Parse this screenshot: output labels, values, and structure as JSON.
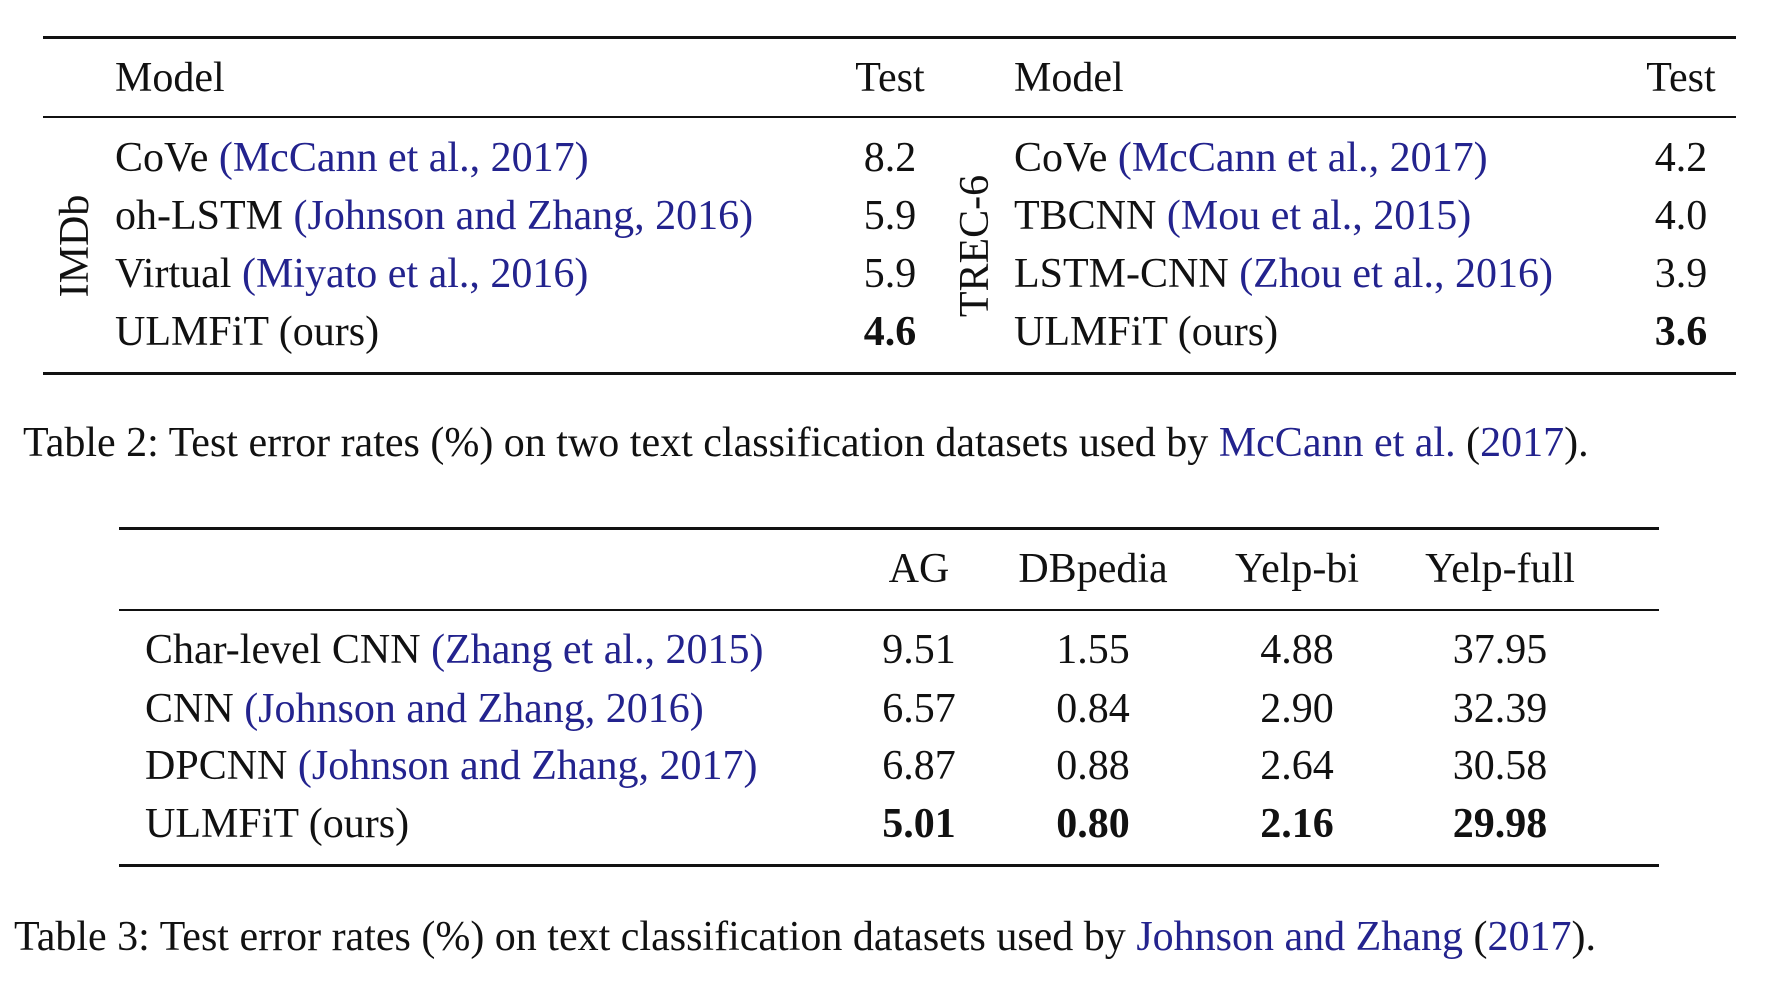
{
  "table2": {
    "left": {
      "dataset": "IMDb",
      "header": [
        "Model",
        "Test"
      ],
      "rows": [
        {
          "name": "CoVe",
          "cite": "(McCann et al., 2017)",
          "test": "8.2"
        },
        {
          "name": "oh-LSTM",
          "cite": "(Johnson and Zhang, 2016)",
          "test": "5.9"
        },
        {
          "name": "Virtual",
          "cite": "(Miyato et al., 2016)",
          "test": "5.9"
        },
        {
          "name": "ULMFiT (ours)",
          "test": "4.6",
          "bold": true
        }
      ]
    },
    "right": {
      "dataset": "TREC-6",
      "header": [
        "Model",
        "Test"
      ],
      "rows": [
        {
          "name": "CoVe",
          "cite": "(McCann et al., 2017)",
          "test": "4.2"
        },
        {
          "name": "TBCNN",
          "cite": "(Mou et al., 2015)",
          "test": "4.0"
        },
        {
          "name": "LSTM-CNN",
          "cite": "(Zhou et al., 2016)",
          "test": "3.9"
        },
        {
          "name": "ULMFiT (ours)",
          "test": "3.6",
          "bold": true
        }
      ]
    },
    "caption": [
      {
        "text": "Table 2: Test error rates (%) on two text classification datasets used by ",
        "cite": false
      },
      {
        "text": "McCann et al.",
        "cite": true
      },
      {
        "text": " (",
        "cite": false
      },
      {
        "text": "2017",
        "cite": true
      },
      {
        "text": ").",
        "cite": false
      }
    ]
  },
  "table3": {
    "header": [
      "AG",
      "DBpedia",
      "Yelp-bi",
      "Yelp-full"
    ],
    "rows": [
      {
        "name": "Char-level CNN",
        "cite": "(Zhang et al., 2015)",
        "values": [
          "9.51",
          "1.55",
          "4.88",
          "37.95"
        ]
      },
      {
        "name": "CNN",
        "cite": "(Johnson and Zhang, 2016)",
        "values": [
          "6.57",
          "0.84",
          "2.90",
          "32.39"
        ]
      },
      {
        "name": "DPCNN",
        "cite": "(Johnson and Zhang, 2017)",
        "values": [
          "6.87",
          "0.88",
          "2.64",
          "30.58"
        ]
      },
      {
        "name": "ULMFiT (ours)",
        "values": [
          "5.01",
          "0.80",
          "2.16",
          "29.98"
        ],
        "bold": true
      }
    ],
    "caption": [
      {
        "text": "Table 3: Test error rates (%) on text classification datasets used by ",
        "cite": false
      },
      {
        "text": "Johnson and Zhang",
        "cite": true
      },
      {
        "text": " (",
        "cite": false
      },
      {
        "text": "2017",
        "cite": true
      },
      {
        "text": ").",
        "cite": false
      }
    ]
  }
}
